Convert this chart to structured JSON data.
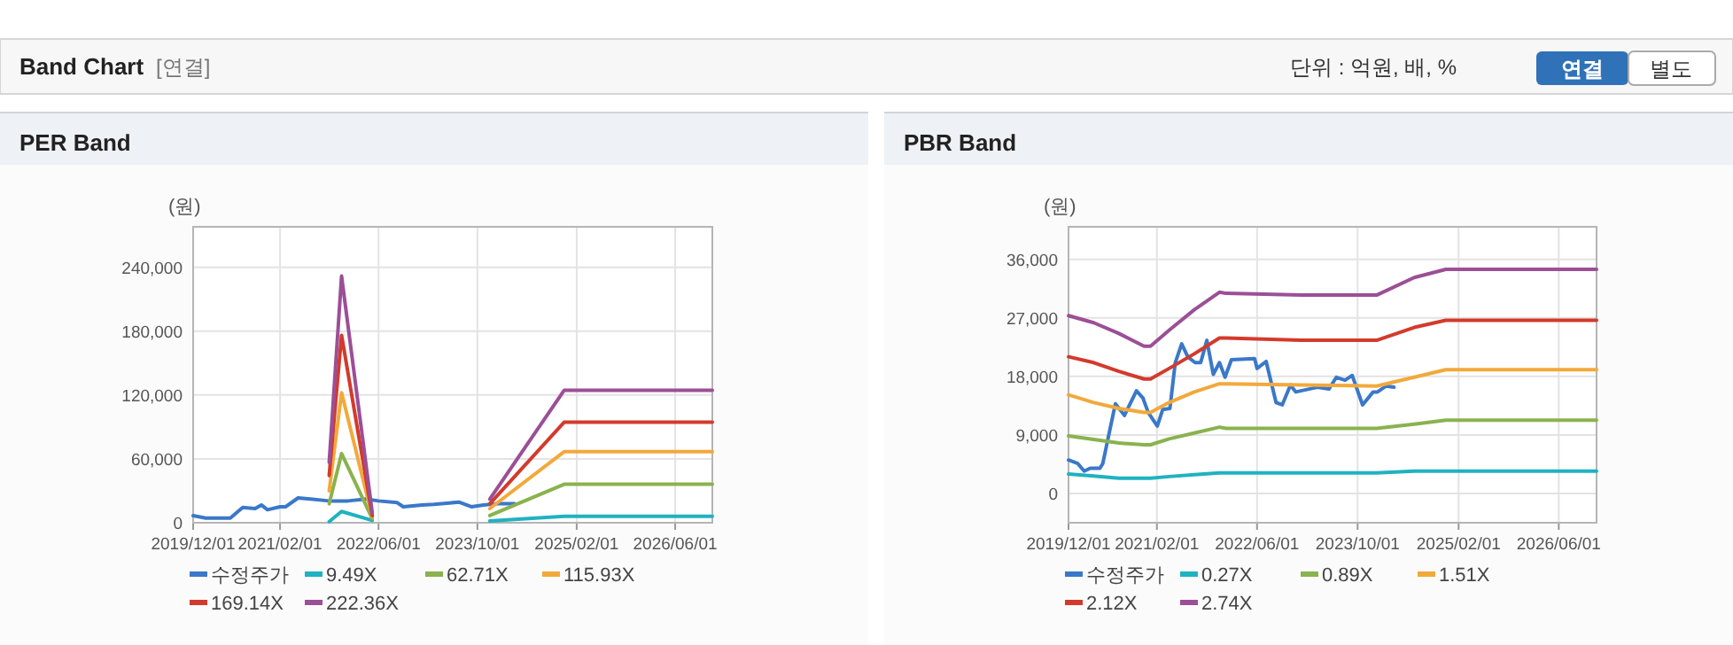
{
  "chart_data": [
    {
      "type": "other",
      "title": "Band Chart",
      "subtitle": "[연결]",
      "annotations": [
        "단위 : 억원, 배, %",
        "연결",
        "별도"
      ]
    },
    {
      "type": "line",
      "title": "PER Band",
      "ylabel": "(원)",
      "xlim": [
        "2019-12-01",
        "2026-12-01"
      ],
      "xticks": [
        {
          "value": "2019-12-01",
          "label": "2019/12/01"
        },
        {
          "value": "2021-02-01",
          "label": "2021/02/01"
        },
        {
          "value": "2022-06-01",
          "label": "2022/06/01"
        },
        {
          "value": "2023-10-01",
          "label": "2023/10/01"
        },
        {
          "value": "2025-02-01",
          "label": "2025/02/01"
        },
        {
          "value": "2026-06-01",
          "label": "2026/06/01"
        }
      ],
      "ylim": [
        0,
        278000
      ],
      "yticks": [
        0,
        {
          "value": 60000,
          "label": "60,000"
        },
        {
          "value": 120000,
          "label": "120,000"
        },
        {
          "value": 180000,
          "label": "180,000"
        },
        {
          "value": 240000,
          "label": "240,000"
        }
      ],
      "grid": true,
      "legend": "bottom",
      "marker": "none",
      "line_style": "solid",
      "series": [
        {
          "name": "수정주가",
          "color": "#3a78c9",
          "x": [
            "2019-12",
            "2020-02",
            "2020-06",
            "2020-08",
            "2020-10",
            "2020-11",
            "2020-12",
            "2021-02",
            "2021-03",
            "2021-05",
            "2021-07",
            "2021-10",
            "2022-01",
            "2022-04",
            "2022-06",
            "2022-09",
            "2022-10",
            "2023-01",
            "2023-03",
            "2023-07",
            "2023-09",
            "2023-11",
            "2024-01",
            "2024-04"
          ],
          "values": [
            6700,
            4400,
            4400,
            14400,
            13300,
            16700,
            12200,
            15000,
            15000,
            23300,
            22200,
            20500,
            20500,
            22200,
            20500,
            18900,
            15000,
            16700,
            17200,
            19400,
            15000,
            16700,
            17800,
            17800
          ]
        },
        {
          "name": "9.49X",
          "color": "#1fb2c0",
          "x": [
            "2021-10",
            "2021-12",
            "2022-05"
          ],
          "values": [
            1100,
            10600,
            2200
          ]
        },
        {
          "name": "62.71X",
          "color": "#8ab24e",
          "x": [
            "2021-10",
            "2021-12",
            "2022-05"
          ],
          "values": [
            17800,
            65000,
            3900
          ]
        },
        {
          "name": "115.93X",
          "color": "#f2a93b",
          "x": [
            "2021-10",
            "2021-12",
            "2022-05"
          ],
          "values": [
            30000,
            122200,
            5600
          ]
        },
        {
          "name": "169.14X",
          "color": "#d33a2c",
          "x": [
            "2021-10",
            "2021-12",
            "2022-05"
          ],
          "values": [
            44400,
            176100,
            6700
          ]
        },
        {
          "name": "222.36X",
          "color": "#9b4f96",
          "x": [
            "2021-10",
            "2021-12",
            "2022-05"
          ],
          "values": [
            56700,
            231700,
            9400
          ]
        },
        {
          "color": "#1fb2c0",
          "x": [
            "2023-12",
            "2024-12",
            "2026-12"
          ],
          "values": [
            1700,
            6100,
            6100
          ]
        },
        {
          "color": "#8ab24e",
          "x": [
            "2023-12",
            "2024-12",
            "2026-12"
          ],
          "values": [
            6700,
            36100,
            36100
          ]
        },
        {
          "color": "#f2a93b",
          "x": [
            "2023-12",
            "2024-12",
            "2026-12"
          ],
          "values": [
            13300,
            66700,
            66700
          ]
        },
        {
          "color": "#d33a2c",
          "x": [
            "2023-12",
            "2024-12",
            "2026-12"
          ],
          "values": [
            17800,
            94400,
            94400
          ]
        },
        {
          "color": "#9b4f96",
          "x": [
            "2023-12",
            "2024-12",
            "2026-12"
          ],
          "values": [
            22200,
            124400,
            124400
          ]
        }
      ]
    },
    {
      "type": "line",
      "title": "PBR Band",
      "ylabel": "(원)",
      "xlim": [
        "2019-12-01",
        "2026-12-01"
      ],
      "xticks": [
        {
          "value": "2019-12-01",
          "label": "2019/12/01"
        },
        {
          "value": "2021-02-01",
          "label": "2021/02/01"
        },
        {
          "value": "2022-06-01",
          "label": "2022/06/01"
        },
        {
          "value": "2023-10-01",
          "label": "2023/10/01"
        },
        {
          "value": "2025-02-01",
          "label": "2025/02/01"
        },
        {
          "value": "2026-06-01",
          "label": "2026/06/01"
        }
      ],
      "ylim": [
        -4500,
        41000
      ],
      "yticks": [
        0,
        {
          "value": 9000,
          "label": "9,000"
        },
        {
          "value": 18000,
          "label": "18,000"
        },
        {
          "value": 27000,
          "label": "27,000"
        },
        {
          "value": 36000,
          "label": "36,000"
        }
      ],
      "grid": true,
      "legend": "bottom",
      "marker": "none",
      "line_style": "solid",
      "series": [
        {
          "name": "수정주가",
          "color": "#3a78c9",
          "x": [
            "2019-12-01",
            "2020-01-15",
            "2020-02-15",
            "2020-03-15",
            "2020-05-01",
            "2020-05-15",
            "2020-06-15",
            "2020-07-15",
            "2020-08-28",
            "2020-10-25",
            "2020-11-25",
            "2020-12-21",
            "2021-02-03",
            "2021-03-01",
            "2021-04-05",
            "2021-05-01",
            "2021-06-01",
            "2021-07-01",
            "2021-08-05",
            "2021-09-01",
            "2021-10-01",
            "2021-11-01",
            "2021-12-01",
            "2021-12-28",
            "2022-01-28",
            "2022-05-20",
            "2022-06-01",
            "2022-07-15",
            "2022-09-01",
            "2022-10-01",
            "2022-11-10",
            "2022-12-05",
            "2023-03-20",
            "2023-05-15",
            "2023-06-20",
            "2023-08-01",
            "2023-09-05",
            "2023-10-25",
            "2023-12-15",
            "2024-01-05",
            "2024-02-15",
            "2024-03-25"
          ],
          "values": [
            5140,
            4600,
            3430,
            3880,
            3880,
            4600,
            9290,
            13800,
            12000,
            15790,
            14700,
            12450,
            10380,
            12900,
            13080,
            20120,
            23000,
            21000,
            20120,
            20120,
            23550,
            18320,
            20120,
            17870,
            20570,
            20750,
            19220,
            20300,
            13980,
            13620,
            16690,
            15610,
            16330,
            16060,
            17870,
            17420,
            18140,
            13620,
            15610,
            15610,
            16510,
            16330
          ]
        },
        {
          "name": "0.27X",
          "color": "#1fb2c0",
          "x": [
            "2019-12",
            "2020-04",
            "2020-08",
            "2020-12",
            "2021-01",
            "2021-04",
            "2021-08",
            "2021-12",
            "2022-01",
            "2023-01",
            "2024-01",
            "2024-07",
            "2024-12",
            "2026-12"
          ],
          "values": [
            2980,
            2700,
            2350,
            2350,
            2350,
            2600,
            2890,
            3160,
            3160,
            3160,
            3160,
            3430,
            3430,
            3430
          ]
        },
        {
          "name": "0.89X",
          "color": "#8ab24e",
          "x": [
            "2019-12",
            "2020-04",
            "2020-08",
            "2020-12",
            "2021-01",
            "2021-04",
            "2021-08",
            "2021-12",
            "2022-01",
            "2023-01",
            "2024-01",
            "2024-07",
            "2024-12",
            "2026-12"
          ],
          "values": [
            8840,
            8300,
            7760,
            7490,
            7490,
            8390,
            9300,
            10200,
            10020,
            10020,
            10020,
            10650,
            11280,
            11280
          ]
        },
        {
          "name": "1.51X",
          "color": "#f2a93b",
          "x": [
            "2019-12",
            "2020-04",
            "2020-08",
            "2020-12",
            "2021-01",
            "2021-04",
            "2021-08",
            "2021-12",
            "2022-01",
            "2023-01",
            "2024-01",
            "2024-07",
            "2024-12",
            "2026-12"
          ],
          "values": [
            15160,
            13980,
            13080,
            12450,
            12450,
            13980,
            15610,
            16870,
            16870,
            16690,
            16510,
            17870,
            19040,
            19040
          ]
        },
        {
          "name": "2.12X",
          "color": "#d33a2c",
          "x": [
            "2019-12",
            "2020-04",
            "2020-08",
            "2020-12",
            "2021-01",
            "2021-04",
            "2021-08",
            "2021-12",
            "2022-01",
            "2023-01",
            "2024-01",
            "2024-07",
            "2024-12",
            "2026-12"
          ],
          "values": [
            21020,
            20120,
            18770,
            17600,
            17600,
            19220,
            21470,
            23910,
            23910,
            23550,
            23550,
            25530,
            26620,
            26620
          ]
        },
        {
          "name": "2.74X",
          "color": "#9b4f96",
          "x": [
            "2019-12",
            "2020-04",
            "2020-08",
            "2020-12",
            "2021-01",
            "2021-04",
            "2021-08",
            "2021-12",
            "2022-01",
            "2023-01",
            "2024-01",
            "2024-07",
            "2024-12",
            "2026-12"
          ],
          "values": [
            27340,
            26250,
            24600,
            22650,
            22650,
            25100,
            28240,
            30950,
            30770,
            30500,
            30500,
            33200,
            34470,
            34470
          ]
        }
      ]
    }
  ]
}
